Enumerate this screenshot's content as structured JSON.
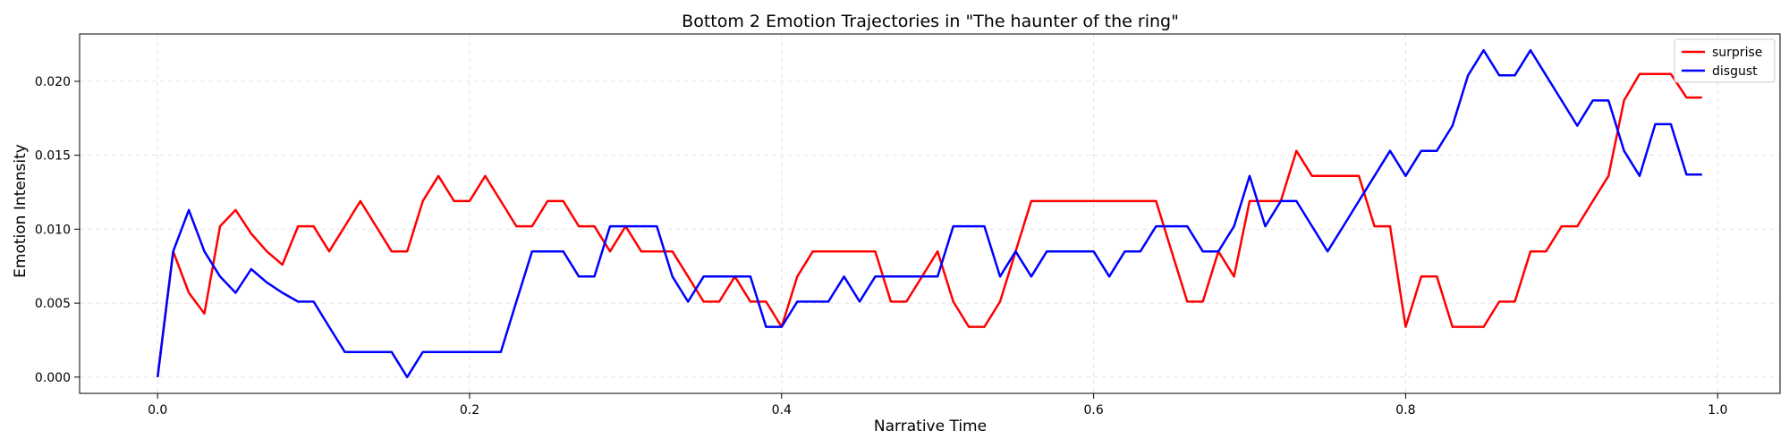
{
  "chart_data": {
    "type": "line",
    "title": "Bottom 2 Emotion Trajectories in \"The haunter of the ring\"",
    "xlabel": "Narrative Time",
    "ylabel": "Emotion Intensity",
    "xlim": [
      -0.05,
      1.04
    ],
    "ylim": [
      -0.0011,
      0.0232
    ],
    "xticks": [
      0.0,
      0.2,
      0.4,
      0.6,
      0.8,
      1.0
    ],
    "xtick_labels": [
      "0.0",
      "0.2",
      "0.4",
      "0.6",
      "0.8",
      "1.0"
    ],
    "yticks": [
      0.0,
      0.005,
      0.01,
      0.015,
      0.02
    ],
    "ytick_labels": [
      "0.000",
      "0.005",
      "0.010",
      "0.015",
      "0.020"
    ],
    "grid": true,
    "legend_position": "top-right",
    "series": [
      {
        "name": "surprise",
        "color": "#ff0000",
        "x": [
          0.0,
          0.01,
          0.02,
          0.03,
          0.04,
          0.05,
          0.06,
          0.07,
          0.08,
          0.09,
          0.1,
          0.11,
          0.12,
          0.13,
          0.14,
          0.15,
          0.16,
          0.17,
          0.18,
          0.19,
          0.2,
          0.21,
          0.22,
          0.23,
          0.24,
          0.25,
          0.26,
          0.27,
          0.28,
          0.29,
          0.3,
          0.31,
          0.32,
          0.33,
          0.34,
          0.35,
          0.36,
          0.37,
          0.38,
          0.39,
          0.4,
          0.41,
          0.42,
          0.43,
          0.44,
          0.45,
          0.46,
          0.47,
          0.48,
          0.49,
          0.5,
          0.51,
          0.52,
          0.53,
          0.54,
          0.55,
          0.56,
          0.57,
          0.58,
          0.59,
          0.6,
          0.61,
          0.62,
          0.63,
          0.64,
          0.65,
          0.66,
          0.67,
          0.68,
          0.69,
          0.7,
          0.71,
          0.72,
          0.73,
          0.74,
          0.75,
          0.76,
          0.77,
          0.78,
          0.79,
          0.8,
          0.81,
          0.82,
          0.83,
          0.84,
          0.85,
          0.86,
          0.87,
          0.88,
          0.89,
          0.9,
          0.91,
          0.92,
          0.93,
          0.94,
          0.95,
          0.96,
          0.97,
          0.98,
          0.99
        ],
        "y": [
          0.0,
          0.0085,
          0.0057,
          0.0043,
          0.0102,
          0.0113,
          0.0097,
          0.0085,
          0.0076,
          0.0102,
          0.0102,
          0.0085,
          0.0102,
          0.0119,
          0.0102,
          0.0085,
          0.0085,
          0.0119,
          0.0136,
          0.0119,
          0.0119,
          0.0136,
          0.0119,
          0.0102,
          0.0102,
          0.0119,
          0.0119,
          0.0102,
          0.0102,
          0.0085,
          0.0102,
          0.0085,
          0.0085,
          0.0085,
          0.0068,
          0.0051,
          0.0051,
          0.0068,
          0.0051,
          0.0051,
          0.0034,
          0.0068,
          0.0085,
          0.0085,
          0.0085,
          0.0085,
          0.0085,
          0.0051,
          0.0051,
          0.0068,
          0.0085,
          0.0051,
          0.0034,
          0.0034,
          0.0051,
          0.0085,
          0.0119,
          0.0119,
          0.0119,
          0.0119,
          0.0119,
          0.0119,
          0.0119,
          0.0119,
          0.0119,
          0.0085,
          0.0051,
          0.0051,
          0.0085,
          0.0068,
          0.0119,
          0.0119,
          0.0119,
          0.0153,
          0.0136,
          0.0136,
          0.0136,
          0.0136,
          0.0102,
          0.0102,
          0.0034,
          0.0068,
          0.0068,
          0.0034,
          0.0034,
          0.0034,
          0.0051,
          0.0051,
          0.0085,
          0.0085,
          0.0102,
          0.0102,
          0.0119,
          0.0136,
          0.0187,
          0.0205,
          0.0205,
          0.0205,
          0.0189,
          0.0189
        ]
      },
      {
        "name": "disgust",
        "color": "#0000ff",
        "x": [
          0.0,
          0.01,
          0.02,
          0.03,
          0.04,
          0.05,
          0.06,
          0.07,
          0.08,
          0.09,
          0.1,
          0.11,
          0.12,
          0.13,
          0.14,
          0.15,
          0.16,
          0.17,
          0.18,
          0.19,
          0.2,
          0.21,
          0.22,
          0.23,
          0.24,
          0.25,
          0.26,
          0.27,
          0.28,
          0.29,
          0.3,
          0.31,
          0.32,
          0.33,
          0.34,
          0.35,
          0.36,
          0.37,
          0.38,
          0.39,
          0.4,
          0.41,
          0.42,
          0.43,
          0.44,
          0.45,
          0.46,
          0.47,
          0.48,
          0.49,
          0.5,
          0.51,
          0.52,
          0.53,
          0.54,
          0.55,
          0.56,
          0.57,
          0.58,
          0.59,
          0.6,
          0.61,
          0.62,
          0.63,
          0.64,
          0.65,
          0.66,
          0.67,
          0.68,
          0.69,
          0.7,
          0.71,
          0.72,
          0.73,
          0.74,
          0.75,
          0.76,
          0.77,
          0.78,
          0.79,
          0.8,
          0.81,
          0.82,
          0.83,
          0.84,
          0.85,
          0.86,
          0.87,
          0.88,
          0.89,
          0.9,
          0.91,
          0.92,
          0.93,
          0.94,
          0.95,
          0.96,
          0.97,
          0.98,
          0.99
        ],
        "y": [
          0.0,
          0.0085,
          0.0113,
          0.0085,
          0.0068,
          0.0057,
          0.0073,
          0.0064,
          0.0057,
          0.0051,
          0.0051,
          0.0034,
          0.0017,
          0.0017,
          0.0017,
          0.0017,
          0.0,
          0.0017,
          0.0017,
          0.0017,
          0.0017,
          0.0017,
          0.0017,
          0.0051,
          0.0085,
          0.0085,
          0.0085,
          0.0068,
          0.0068,
          0.0102,
          0.0102,
          0.0102,
          0.0102,
          0.0068,
          0.0051,
          0.0068,
          0.0068,
          0.0068,
          0.0068,
          0.0034,
          0.0034,
          0.0051,
          0.0051,
          0.0051,
          0.0068,
          0.0051,
          0.0068,
          0.0068,
          0.0068,
          0.0068,
          0.0068,
          0.0102,
          0.0102,
          0.0102,
          0.0068,
          0.0085,
          0.0068,
          0.0085,
          0.0085,
          0.0085,
          0.0085,
          0.0068,
          0.0085,
          0.0085,
          0.0102,
          0.0102,
          0.0102,
          0.0085,
          0.0085,
          0.0102,
          0.0136,
          0.0102,
          0.0119,
          0.0119,
          0.0102,
          0.0085,
          0.0102,
          0.0119,
          0.0136,
          0.0153,
          0.0136,
          0.0153,
          0.0153,
          0.017,
          0.0204,
          0.0221,
          0.0204,
          0.0204,
          0.0221,
          0.0204,
          0.0187,
          0.017,
          0.0187,
          0.0187,
          0.0153,
          0.0136,
          0.0171,
          0.0171,
          0.0137,
          0.0137
        ]
      }
    ]
  }
}
